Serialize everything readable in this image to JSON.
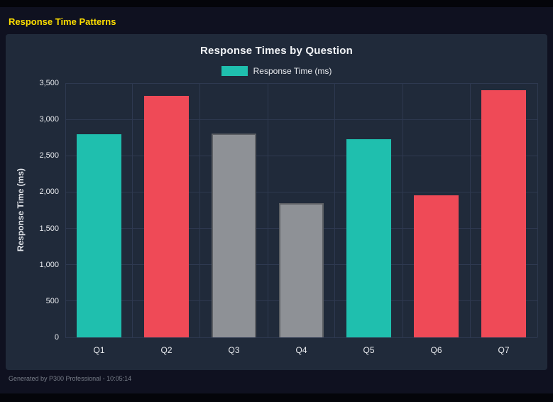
{
  "page": {
    "header_title": "Response Time Patterns",
    "footer_text": "Generated by P300 Professional - 10:05:14"
  },
  "chart_data": {
    "type": "bar",
    "title": "Response Times by Question",
    "legend": {
      "label": "Response Time (ms)",
      "color": "#1fbfae"
    },
    "categories": [
      "Q1",
      "Q2",
      "Q3",
      "Q4",
      "Q5",
      "Q6",
      "Q7"
    ],
    "values": [
      2800,
      3320,
      2810,
      1850,
      2730,
      1960,
      3400
    ],
    "bar_colors": [
      "#1fbfae",
      "#ef4a57",
      "#8e9196",
      "#8e9196",
      "#1fbfae",
      "#ef4a57",
      "#ef4a57"
    ],
    "bar_border_colors": [
      "#1fbfae",
      "#ef4a57",
      "#5c5f64",
      "#5c5f64",
      "#1fbfae",
      "#ef4a57",
      "#ef4a57"
    ],
    "xlabel": "",
    "ylabel": "Response Time (ms)",
    "ylim": [
      0,
      3500
    ],
    "ytick_step": 500,
    "ytick_labels": [
      "0",
      "500",
      "1,000",
      "1,500",
      "2,000",
      "2,500",
      "3,000",
      "3,500"
    ],
    "grid": true,
    "legend_position": "top",
    "colors": {
      "background": "#0f1120",
      "panel": "#202a3a",
      "grid": "#2e3950",
      "axis_text": "#e8eaee",
      "header_yellow": "#ffdf00",
      "footer_text": "#787e89"
    }
  }
}
